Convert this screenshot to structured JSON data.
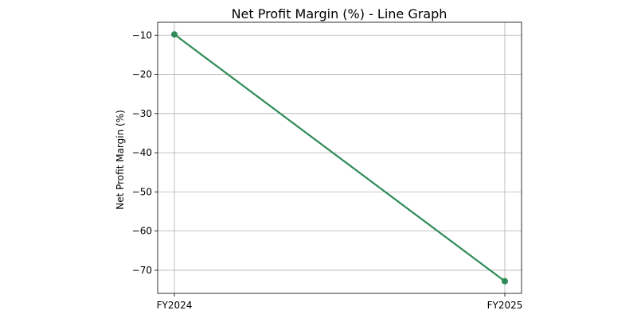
{
  "chart_data": {
    "type": "line",
    "title": "Net Profit Margin (%) - Line Graph",
    "xlabel": "",
    "ylabel": "Net Profit Margin (%)",
    "categories": [
      "FY2024",
      "FY2025"
    ],
    "series": [
      {
        "values": [
          -9.8,
          -72.8
        ],
        "color": "#2e8b57",
        "marker": "circle"
      }
    ],
    "ylim": [
      -75.9,
      -6.7
    ],
    "yticks": [
      -10,
      -20,
      -30,
      -40,
      -50,
      -60,
      -70
    ],
    "ytick_labels": [
      "−10",
      "−20",
      "−30",
      "−40",
      "−50",
      "−60",
      "−70"
    ],
    "grid": true
  }
}
